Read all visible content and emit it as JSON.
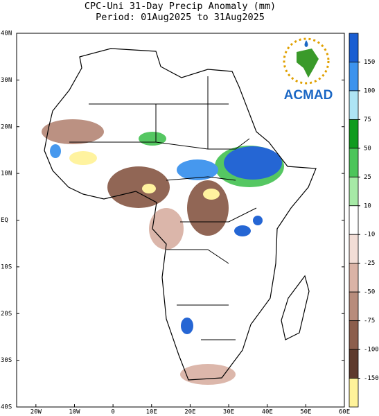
{
  "map": {
    "title": "CPC-Uni 31-Day Precip Anomaly (mm)",
    "subtitle": "Period: 01Aug2025 to 31Aug2025",
    "lon_lim": [
      -25,
      60
    ],
    "lat_lim": [
      -40,
      40
    ],
    "lat_ticks": [
      {
        "value": 40,
        "label": "40N"
      },
      {
        "value": 30,
        "label": "30N"
      },
      {
        "value": 20,
        "label": "20N"
      },
      {
        "value": 10,
        "label": "10N"
      },
      {
        "value": 0,
        "label": "EQ"
      },
      {
        "value": -10,
        "label": "10S"
      },
      {
        "value": -20,
        "label": "20S"
      },
      {
        "value": -30,
        "label": "30S"
      },
      {
        "value": -40,
        "label": "40S"
      }
    ],
    "lon_ticks": [
      {
        "value": -20,
        "label": "20W"
      },
      {
        "value": -10,
        "label": "10W"
      },
      {
        "value": 0,
        "label": "0"
      },
      {
        "value": 10,
        "label": "10E"
      },
      {
        "value": 20,
        "label": "20E"
      },
      {
        "value": 30,
        "label": "30E"
      },
      {
        "value": 40,
        "label": "40E"
      },
      {
        "value": 50,
        "label": "50E"
      },
      {
        "value": 60,
        "label": "60E"
      }
    ],
    "colorbar": {
      "ticks": [
        150,
        100,
        75,
        50,
        25,
        10,
        -10,
        -25,
        -50,
        -75,
        -100,
        -150
      ],
      "colors": [
        "#1a5ed2",
        "#3d93ee",
        "#aee4f4",
        "#0f9b1e",
        "#4cc55a",
        "#a6eaa6",
        "#ffffff",
        "#f2ddd6",
        "#dab3a6",
        "#b88c7c",
        "#8c5e4c",
        "#5e3a2c",
        "#fff39a"
      ]
    },
    "logo": "ACMAD"
  }
}
